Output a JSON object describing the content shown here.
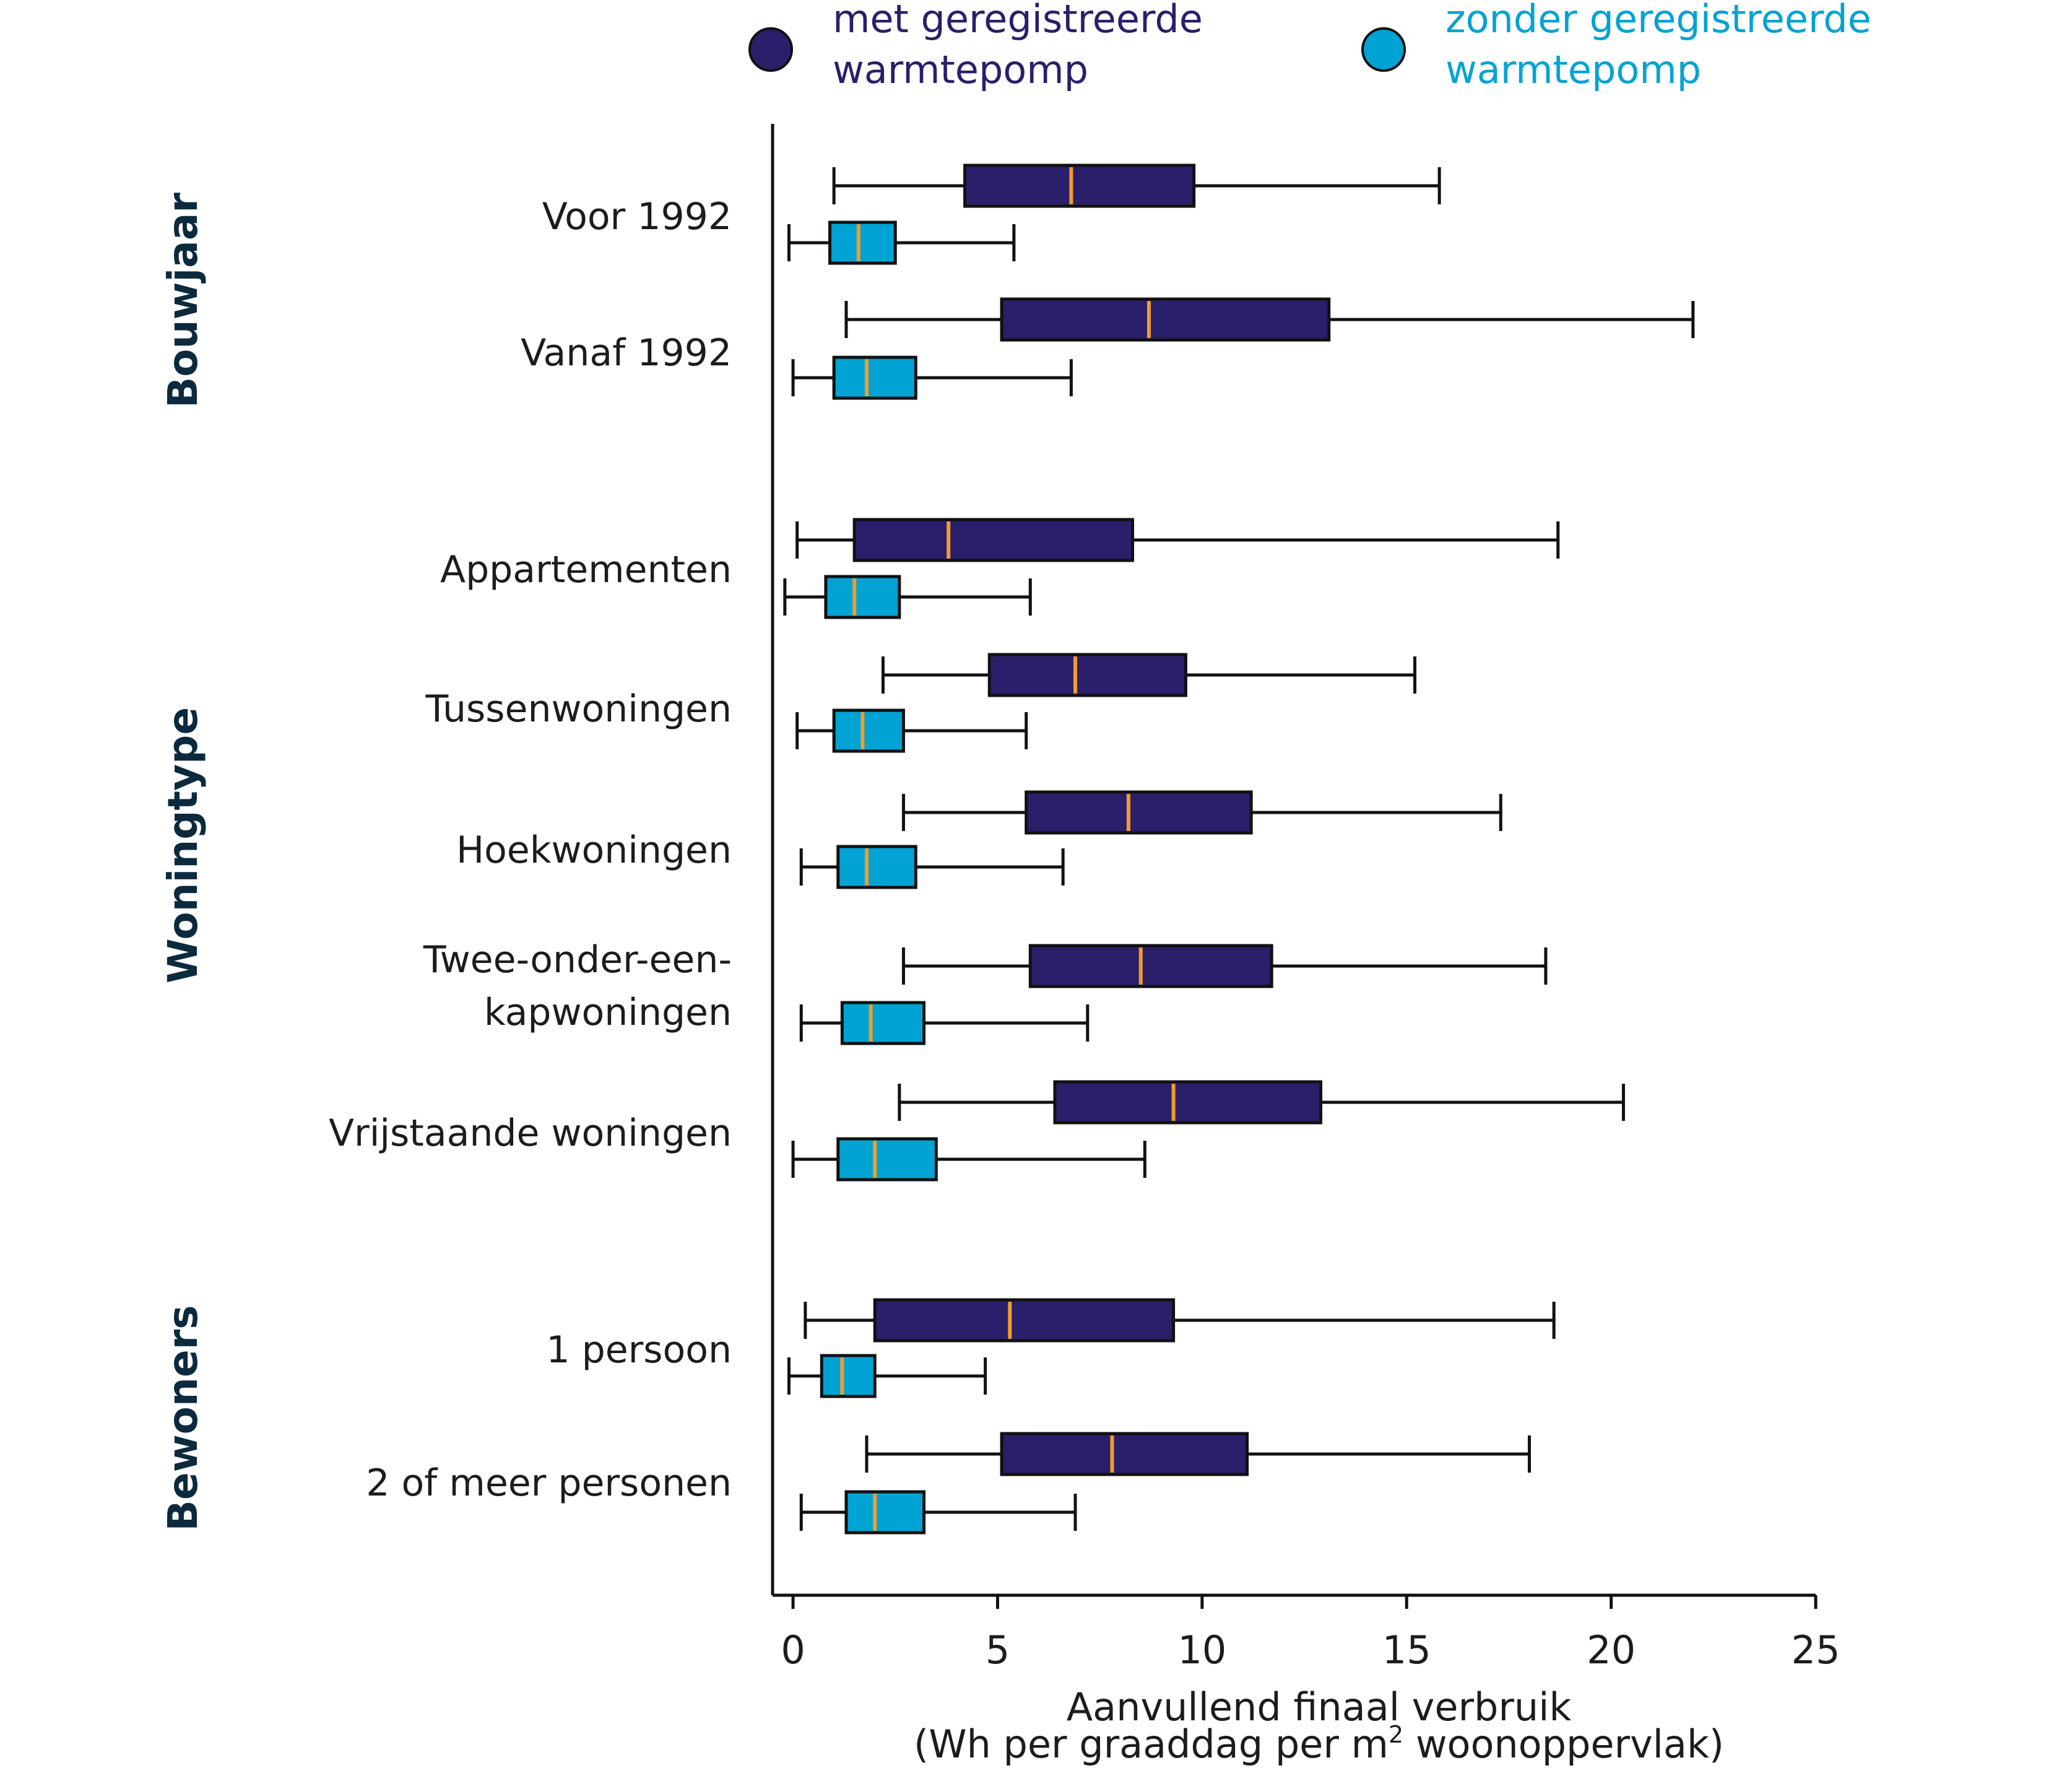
{
  "chart_data": {
    "type": "boxplot",
    "orientation": "horizontal",
    "series": [
      {
        "name": "met geregistreerde warmtepomp",
        "name_lines": [
          "met geregistreerde",
          "warmtepomp"
        ],
        "color": "#2a1f6b"
      },
      {
        "name": "zonder geregistreerde warmtepomp",
        "name_lines": [
          "zonder geregistreerde",
          "warmtepomp"
        ],
        "color": "#00a3d3"
      }
    ],
    "median_color": "#f39c2a",
    "legend_position": "top",
    "groups": [
      {
        "label": "Bouwjaar",
        "categories": [
          {
            "label": [
              "Voor 1992"
            ],
            "boxes": [
              {
                "series": 0,
                "min": 1.0,
                "q1": 4.2,
                "median": 6.8,
                "q3": 9.8,
                "max": 15.8
              },
              {
                "series": 1,
                "min": -0.1,
                "q1": 0.9,
                "median": 1.6,
                "q3": 2.5,
                "max": 5.4
              }
            ]
          },
          {
            "label": [
              "Vanaf 1992"
            ],
            "boxes": [
              {
                "series": 0,
                "min": 1.3,
                "q1": 5.1,
                "median": 8.7,
                "q3": 13.1,
                "max": 22.0
              },
              {
                "series": 1,
                "min": 0.0,
                "q1": 1.0,
                "median": 1.8,
                "q3": 3.0,
                "max": 6.8
              }
            ]
          }
        ]
      },
      {
        "label": "Woningtype",
        "categories": [
          {
            "label": [
              "Appartementen"
            ],
            "boxes": [
              {
                "series": 0,
                "min": 0.1,
                "q1": 1.5,
                "median": 3.8,
                "q3": 8.3,
                "max": 18.7
              },
              {
                "series": 1,
                "min": -0.2,
                "q1": 0.8,
                "median": 1.5,
                "q3": 2.6,
                "max": 5.8
              }
            ]
          },
          {
            "label": [
              "Tussenwoningen"
            ],
            "boxes": [
              {
                "series": 0,
                "min": 2.2,
                "q1": 4.8,
                "median": 6.9,
                "q3": 9.6,
                "max": 15.2
              },
              {
                "series": 1,
                "min": 0.1,
                "q1": 1.0,
                "median": 1.7,
                "q3": 2.7,
                "max": 5.7
              }
            ]
          },
          {
            "label": [
              "Hoekwoningen"
            ],
            "boxes": [
              {
                "series": 0,
                "min": 2.7,
                "q1": 5.7,
                "median": 8.2,
                "q3": 11.2,
                "max": 17.3
              },
              {
                "series": 1,
                "min": 0.2,
                "q1": 1.1,
                "median": 1.8,
                "q3": 3.0,
                "max": 6.6
              }
            ]
          },
          {
            "label": [
              "Twee-onder-een-",
              "kapwoningen"
            ],
            "boxes": [
              {
                "series": 0,
                "min": 2.7,
                "q1": 5.8,
                "median": 8.5,
                "q3": 11.7,
                "max": 18.4
              },
              {
                "series": 1,
                "min": 0.2,
                "q1": 1.2,
                "median": 1.9,
                "q3": 3.2,
                "max": 7.2
              }
            ]
          },
          {
            "label": [
              "Vrijstaande woningen"
            ],
            "boxes": [
              {
                "series": 0,
                "min": 2.6,
                "q1": 6.4,
                "median": 9.3,
                "q3": 12.9,
                "max": 20.3
              },
              {
                "series": 1,
                "min": 0.0,
                "q1": 1.1,
                "median": 2.0,
                "q3": 3.5,
                "max": 8.6
              }
            ]
          }
        ]
      },
      {
        "label": "Bewoners",
        "categories": [
          {
            "label": [
              "1 persoon"
            ],
            "boxes": [
              {
                "series": 0,
                "min": 0.3,
                "q1": 2.0,
                "median": 5.3,
                "q3": 9.3,
                "max": 18.6
              },
              {
                "series": 1,
                "min": -0.1,
                "q1": 0.7,
                "median": 1.2,
                "q3": 2.0,
                "max": 4.7
              }
            ]
          },
          {
            "label": [
              "2 of meer personen"
            ],
            "boxes": [
              {
                "series": 0,
                "min": 1.8,
                "q1": 5.1,
                "median": 7.8,
                "q3": 11.1,
                "max": 18.0
              },
              {
                "series": 1,
                "min": 0.2,
                "q1": 1.3,
                "median": 2.0,
                "q3": 3.2,
                "max": 6.9
              }
            ]
          }
        ]
      }
    ],
    "x_axis": {
      "ticks": [
        0,
        5,
        10,
        15,
        20,
        25
      ],
      "xlim": [
        -0.5,
        25
      ],
      "title_line1": "Aanvullend finaal verbruik",
      "title_line2_pre": "(Wh per graaddag per m",
      "title_line2_sup": "2",
      "title_line2_post": " woonoppervlak)"
    },
    "grid": false
  }
}
